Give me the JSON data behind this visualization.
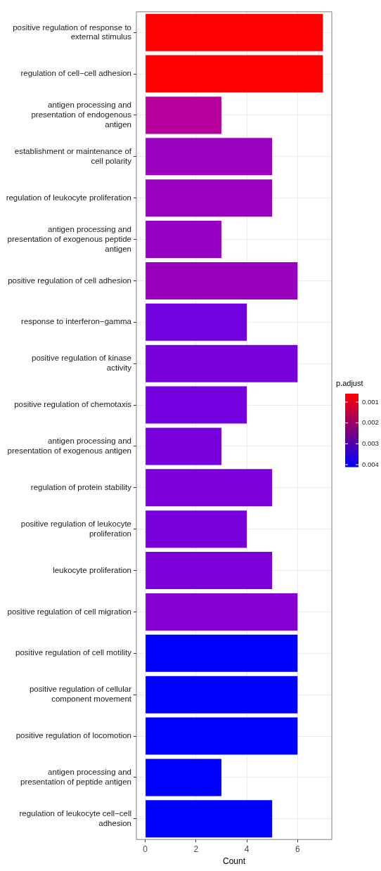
{
  "chart_data": {
    "type": "bar",
    "orientation": "horizontal",
    "xlabel": "Count",
    "categories": [
      "positive regulation of response to external stimulus",
      "regulation of cell−cell adhesion",
      "antigen processing and presentation of endogenous antigen",
      "establishment or maintenance of cell polarity",
      "regulation of leukocyte proliferation",
      "antigen processing and presentation of exogenous peptide antigen",
      "positive regulation of cell adhesion",
      "response to interferon−gamma",
      "positive regulation of kinase activity",
      "positive regulation of chemotaxis",
      "antigen processing and presentation of exogenous antigen",
      "regulation of protein stability",
      "positive regulation of leukocyte proliferation",
      "leukocyte proliferation",
      "positive regulation of cell migration",
      "positive regulation of cell motility",
      "positive regulation of cellular component movement",
      "positive regulation of locomotion",
      "antigen processing and presentation of peptide antigen",
      "regulation of leukocyte cell−cell adhesion"
    ],
    "values": [
      7,
      7,
      3,
      5,
      5,
      3,
      6,
      4,
      6,
      4,
      3,
      5,
      4,
      5,
      6,
      6,
      6,
      6,
      3,
      5
    ],
    "colors": [
      "#ff0000",
      "#ff0000",
      "#b8009c",
      "#9900c0",
      "#9900c0",
      "#9600c2",
      "#9800c0",
      "#7000e0",
      "#7800dc",
      "#7400de",
      "#7800dc",
      "#7e00d8",
      "#7800dc",
      "#7e00d8",
      "#8600d2",
      "#0000ff",
      "#0000ff",
      "#0000ff",
      "#0000ff",
      "#0000ff"
    ],
    "xlim": [
      -0.35,
      7.35
    ],
    "xticks": [
      0,
      2,
      4,
      6
    ],
    "grid": true,
    "clabel": "p.adjust",
    "clim": [
      0.0006,
      0.0041
    ],
    "cticks": [
      0.001,
      0.002,
      0.003,
      0.004
    ]
  }
}
